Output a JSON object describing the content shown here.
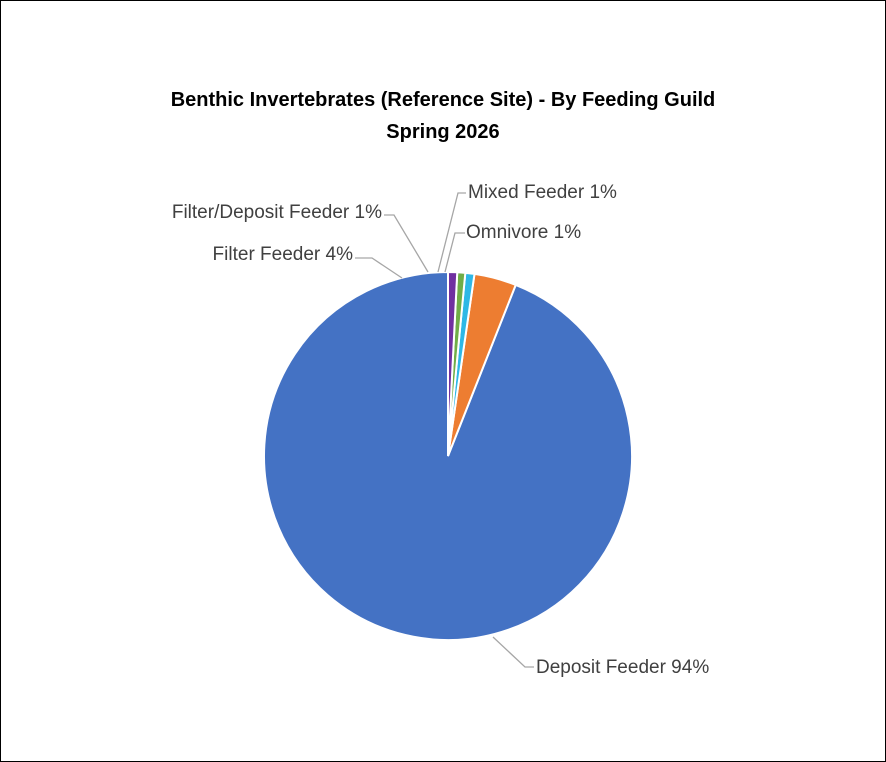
{
  "chart_data": {
    "type": "pie",
    "title": "Benthic Invertebrates (Reference Site) - By Feeding Guild",
    "subtitle": "Spring 2026",
    "slices": [
      {
        "label": "Deposit Feeder",
        "percent_label": "94%",
        "value": 94,
        "color": "#4472C4"
      },
      {
        "label": "Filter Feeder",
        "percent_label": "4%",
        "value": 3.7,
        "color": "#ED7D31"
      },
      {
        "label": "Filter/Deposit Feeder",
        "percent_label": "1%",
        "value": 0.8,
        "color": "#2EB8E6"
      },
      {
        "label": "Mixed Feeder",
        "percent_label": "1%",
        "value": 0.7,
        "color": "#70AD47"
      },
      {
        "label": "Omnivore",
        "percent_label": "1%",
        "value": 0.8,
        "color": "#7030A0"
      }
    ],
    "start_direction": "12 o'clock",
    "direction": "counterclockwise",
    "legend": "none",
    "data_labels": "outside with leader lines"
  }
}
